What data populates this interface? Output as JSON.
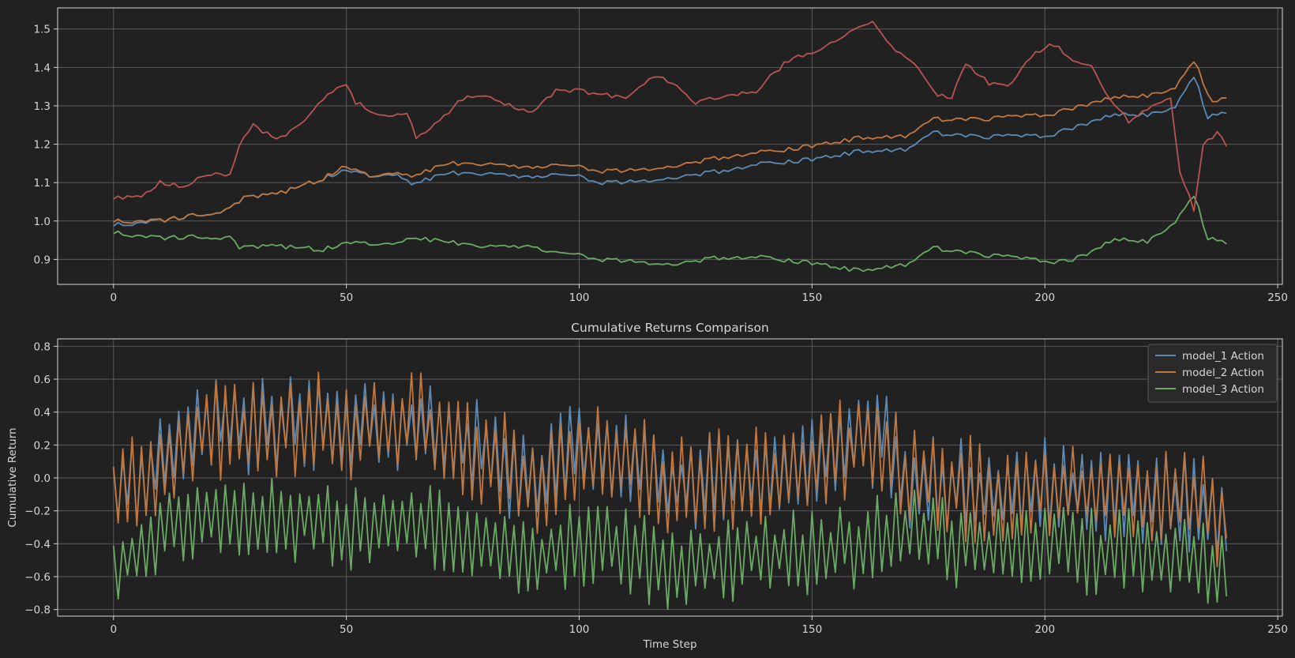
{
  "chart_data": [
    {
      "id": "top",
      "type": "line",
      "title": "",
      "xlabel": "",
      "ylabel": "",
      "xlim": [
        -12,
        251
      ],
      "ylim": [
        0.835,
        1.555
      ],
      "xticks": [
        0,
        50,
        100,
        150,
        200,
        250
      ],
      "yticks": [
        0.9,
        1.0,
        1.1,
        1.2,
        1.3,
        1.4,
        1.5
      ],
      "ytick_labels": [
        "0.9",
        "1.0",
        "1.1",
        "1.2",
        "1.3",
        "1.4",
        "1.5"
      ],
      "grid": true,
      "legend": null,
      "n_points": 240,
      "series": [
        {
          "color": "#5a8ab5",
          "keypoints": [
            [
              0,
              0.99
            ],
            [
              10,
              1.0
            ],
            [
              20,
              1.02
            ],
            [
              25,
              1.03
            ],
            [
              28,
              1.06
            ],
            [
              35,
              1.07
            ],
            [
              45,
              1.11
            ],
            [
              49,
              1.13
            ],
            [
              55,
              1.12
            ],
            [
              61,
              1.125
            ],
            [
              64,
              1.095
            ],
            [
              72,
              1.125
            ],
            [
              80,
              1.125
            ],
            [
              90,
              1.115
            ],
            [
              100,
              1.12
            ],
            [
              104,
              1.1
            ],
            [
              110,
              1.1
            ],
            [
              120,
              1.11
            ],
            [
              130,
              1.13
            ],
            [
              140,
              1.15
            ],
            [
              150,
              1.16
            ],
            [
              160,
              1.18
            ],
            [
              170,
              1.185
            ],
            [
              176,
              1.23
            ],
            [
              185,
              1.22
            ],
            [
              200,
              1.22
            ],
            [
              208,
              1.25
            ],
            [
              215,
              1.28
            ],
            [
              222,
              1.275
            ],
            [
              228,
              1.3
            ],
            [
              232,
              1.38
            ],
            [
              235,
              1.27
            ],
            [
              239,
              1.28
            ]
          ]
        },
        {
          "color": "#c07840",
          "keypoints": [
            [
              0,
              1.0
            ],
            [
              10,
              1.0
            ],
            [
              20,
              1.02
            ],
            [
              25,
              1.03
            ],
            [
              28,
              1.06
            ],
            [
              35,
              1.07
            ],
            [
              45,
              1.11
            ],
            [
              49,
              1.14
            ],
            [
              55,
              1.12
            ],
            [
              61,
              1.13
            ],
            [
              64,
              1.115
            ],
            [
              72,
              1.15
            ],
            [
              80,
              1.15
            ],
            [
              90,
              1.14
            ],
            [
              100,
              1.145
            ],
            [
              104,
              1.13
            ],
            [
              110,
              1.13
            ],
            [
              120,
              1.14
            ],
            [
              130,
              1.165
            ],
            [
              140,
              1.18
            ],
            [
              150,
              1.195
            ],
            [
              160,
              1.215
            ],
            [
              170,
              1.22
            ],
            [
              176,
              1.265
            ],
            [
              185,
              1.265
            ],
            [
              200,
              1.275
            ],
            [
              208,
              1.3
            ],
            [
              215,
              1.325
            ],
            [
              222,
              1.325
            ],
            [
              228,
              1.35
            ],
            [
              232,
              1.42
            ],
            [
              236,
              1.305
            ],
            [
              239,
              1.32
            ]
          ]
        },
        {
          "color": "#6aaa64",
          "keypoints": [
            [
              0,
              0.97
            ],
            [
              10,
              0.955
            ],
            [
              20,
              0.96
            ],
            [
              25,
              0.955
            ],
            [
              27,
              0.93
            ],
            [
              35,
              0.935
            ],
            [
              45,
              0.925
            ],
            [
              49,
              0.94
            ],
            [
              60,
              0.945
            ],
            [
              64,
              0.955
            ],
            [
              80,
              0.935
            ],
            [
              90,
              0.935
            ],
            [
              94,
              0.915
            ],
            [
              100,
              0.915
            ],
            [
              104,
              0.9
            ],
            [
              110,
              0.895
            ],
            [
              120,
              0.885
            ],
            [
              130,
              0.905
            ],
            [
              140,
              0.905
            ],
            [
              150,
              0.89
            ],
            [
              160,
              0.87
            ],
            [
              170,
              0.885
            ],
            [
              176,
              0.93
            ],
            [
              185,
              0.915
            ],
            [
              200,
              0.895
            ],
            [
              205,
              0.895
            ],
            [
              210,
              0.92
            ],
            [
              215,
              0.955
            ],
            [
              222,
              0.945
            ],
            [
              228,
              1.0
            ],
            [
              232,
              1.07
            ],
            [
              235,
              0.955
            ],
            [
              239,
              0.94
            ]
          ]
        },
        {
          "color": "#b85450",
          "keypoints": [
            [
              0,
              1.06
            ],
            [
              5,
              1.06
            ],
            [
              10,
              1.1
            ],
            [
              15,
              1.09
            ],
            [
              20,
              1.12
            ],
            [
              25,
              1.12
            ],
            [
              27,
              1.2
            ],
            [
              30,
              1.25
            ],
            [
              35,
              1.21
            ],
            [
              40,
              1.25
            ],
            [
              45,
              1.32
            ],
            [
              50,
              1.36
            ],
            [
              52,
              1.31
            ],
            [
              58,
              1.27
            ],
            [
              63,
              1.285
            ],
            [
              65,
              1.22
            ],
            [
              70,
              1.26
            ],
            [
              75,
              1.32
            ],
            [
              80,
              1.33
            ],
            [
              85,
              1.3
            ],
            [
              90,
              1.28
            ],
            [
              95,
              1.34
            ],
            [
              100,
              1.34
            ],
            [
              104,
              1.33
            ],
            [
              110,
              1.32
            ],
            [
              116,
              1.38
            ],
            [
              120,
              1.36
            ],
            [
              125,
              1.31
            ],
            [
              130,
              1.32
            ],
            [
              138,
              1.34
            ],
            [
              145,
              1.42
            ],
            [
              150,
              1.44
            ],
            [
              155,
              1.47
            ],
            [
              160,
              1.5
            ],
            [
              163,
              1.52
            ],
            [
              168,
              1.44
            ],
            [
              172,
              1.41
            ],
            [
              177,
              1.33
            ],
            [
              180,
              1.32
            ],
            [
              183,
              1.41
            ],
            [
              188,
              1.36
            ],
            [
              192,
              1.35
            ],
            [
              198,
              1.44
            ],
            [
              202,
              1.46
            ],
            [
              206,
              1.42
            ],
            [
              210,
              1.4
            ],
            [
              215,
              1.3
            ],
            [
              218,
              1.26
            ],
            [
              223,
              1.3
            ],
            [
              227,
              1.32
            ],
            [
              229,
              1.13
            ],
            [
              232,
              1.03
            ],
            [
              234,
              1.2
            ],
            [
              237,
              1.23
            ],
            [
              239,
              1.2
            ]
          ]
        }
      ]
    },
    {
      "id": "bottom",
      "type": "line",
      "title": "Cumulative Returns Comparison",
      "xlabel": "Time Step",
      "ylabel": "Cumulative Return",
      "xlim": [
        -12,
        251
      ],
      "ylim": [
        -0.84,
        0.845
      ],
      "xticks": [
        0,
        50,
        100,
        150,
        200,
        250
      ],
      "yticks": [
        -0.8,
        -0.6,
        -0.4,
        -0.2,
        0.0,
        0.2,
        0.4,
        0.6,
        0.8
      ],
      "ytick_labels": [
        "−0.8",
        "−0.6",
        "−0.4",
        "−0.2",
        "0.0",
        "0.2",
        "0.4",
        "0.6",
        "0.8"
      ],
      "grid": true,
      "legend": "top-right",
      "n_points": 240,
      "series": [
        {
          "name": "model_1 Action",
          "color": "#5a8ab5",
          "base": [
            [
              0,
              -0.1
            ],
            [
              10,
              0.1
            ],
            [
              20,
              0.35
            ],
            [
              30,
              0.3
            ],
            [
              40,
              0.35
            ],
            [
              50,
              0.3
            ],
            [
              60,
              0.35
            ],
            [
              70,
              0.3
            ],
            [
              80,
              0.15
            ],
            [
              90,
              -0.05
            ],
            [
              100,
              0.2
            ],
            [
              110,
              0.1
            ],
            [
              120,
              -0.05
            ],
            [
              130,
              0.0
            ],
            [
              140,
              0.0
            ],
            [
              150,
              0.1
            ],
            [
              160,
              0.2
            ],
            [
              165,
              0.25
            ],
            [
              170,
              0.0
            ],
            [
              180,
              -0.05
            ],
            [
              190,
              -0.1
            ],
            [
              200,
              -0.05
            ],
            [
              210,
              -0.1
            ],
            [
              220,
              -0.1
            ],
            [
              230,
              -0.15
            ],
            [
              239,
              -0.25
            ]
          ],
          "amp": 0.3,
          "seed": 11
        },
        {
          "name": "model_2 Action",
          "color": "#c07840",
          "base": [
            [
              0,
              -0.1
            ],
            [
              10,
              0.1
            ],
            [
              20,
              0.3
            ],
            [
              30,
              0.28
            ],
            [
              40,
              0.33
            ],
            [
              50,
              0.3
            ],
            [
              60,
              0.35
            ],
            [
              70,
              0.28
            ],
            [
              80,
              0.15
            ],
            [
              90,
              -0.05
            ],
            [
              100,
              0.2
            ],
            [
              110,
              0.1
            ],
            [
              120,
              -0.05
            ],
            [
              130,
              0.0
            ],
            [
              140,
              0.0
            ],
            [
              150,
              0.1
            ],
            [
              160,
              0.2
            ],
            [
              165,
              0.25
            ],
            [
              170,
              0.0
            ],
            [
              180,
              -0.05
            ],
            [
              190,
              -0.1
            ],
            [
              200,
              -0.05
            ],
            [
              210,
              -0.1
            ],
            [
              220,
              -0.1
            ],
            [
              230,
              -0.15
            ],
            [
              239,
              -0.25
            ]
          ],
          "amp": 0.33,
          "seed": 23
        },
        {
          "name": "model_3 Action",
          "color": "#6aaa64",
          "base": [
            [
              0,
              -0.55
            ],
            [
              10,
              -0.35
            ],
            [
              20,
              -0.2
            ],
            [
              30,
              -0.2
            ],
            [
              40,
              -0.25
            ],
            [
              50,
              -0.3
            ],
            [
              60,
              -0.25
            ],
            [
              70,
              -0.3
            ],
            [
              80,
              -0.35
            ],
            [
              90,
              -0.5
            ],
            [
              100,
              -0.4
            ],
            [
              110,
              -0.45
            ],
            [
              120,
              -0.55
            ],
            [
              130,
              -0.5
            ],
            [
              140,
              -0.45
            ],
            [
              150,
              -0.45
            ],
            [
              160,
              -0.4
            ],
            [
              170,
              -0.3
            ],
            [
              180,
              -0.4
            ],
            [
              190,
              -0.45
            ],
            [
              200,
              -0.4
            ],
            [
              210,
              -0.45
            ],
            [
              220,
              -0.45
            ],
            [
              230,
              -0.45
            ],
            [
              239,
              -0.6
            ]
          ],
          "amp": 0.27,
          "seed": 37
        }
      ]
    }
  ]
}
